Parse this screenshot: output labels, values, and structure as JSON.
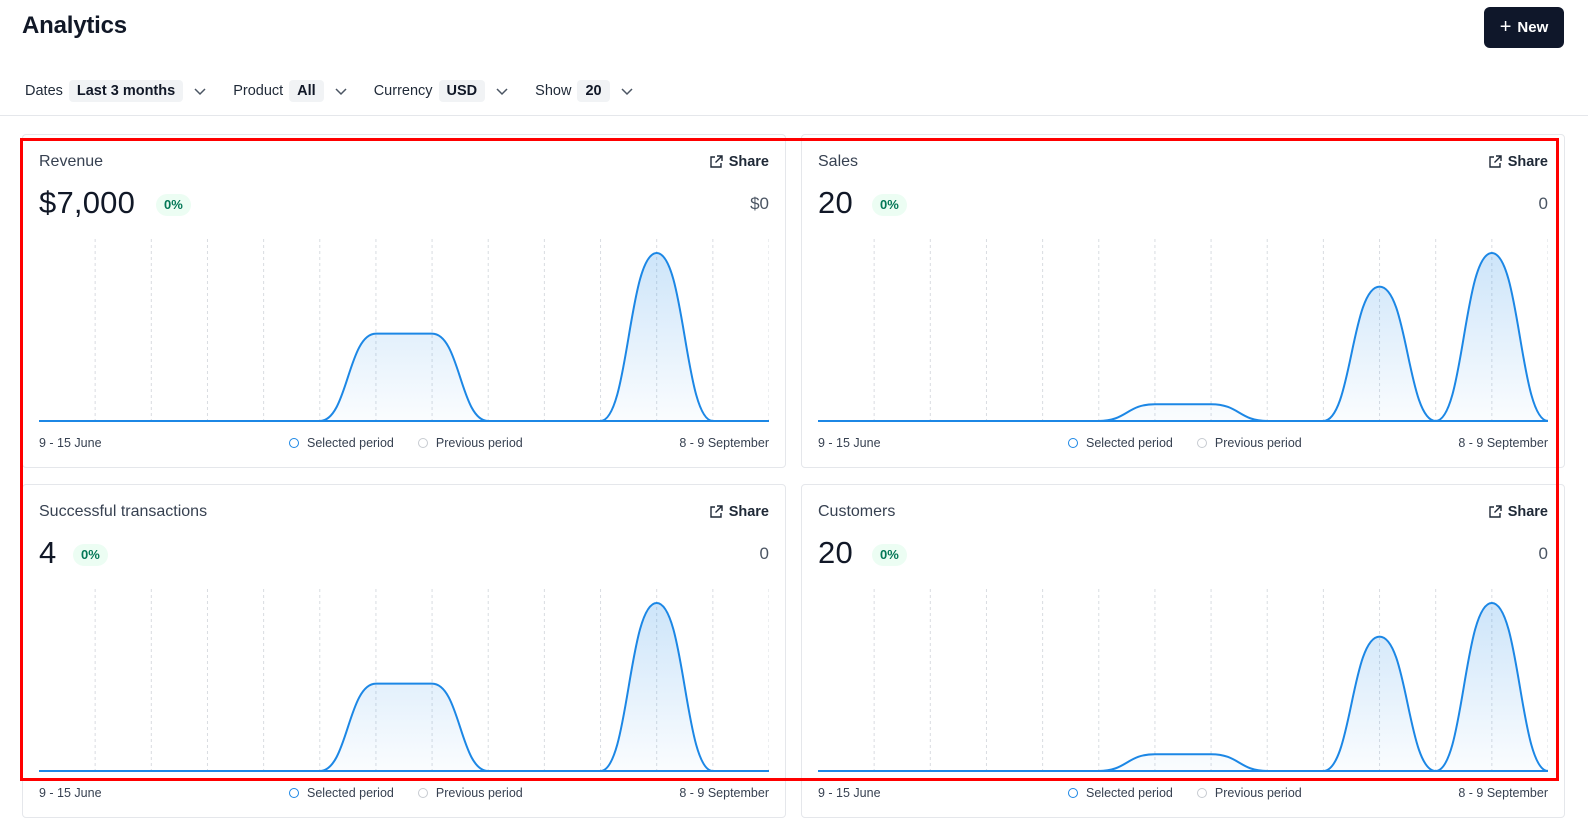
{
  "page": {
    "title": "Analytics",
    "new_button_label": "New"
  },
  "filters": [
    {
      "label": "Dates",
      "value": "Last 3 months"
    },
    {
      "label": "Product",
      "value": "All"
    },
    {
      "label": "Currency",
      "value": "USD"
    },
    {
      "label": "Show",
      "value": "20"
    }
  ],
  "legend": {
    "selected": "Selected period",
    "previous": "Previous period"
  },
  "share_label": "Share",
  "colors": {
    "line": "#1c87e5",
    "badge_bg": "#ecfdf3",
    "badge_text": "#047857",
    "highlight": "#ff0000"
  },
  "cards": [
    {
      "title": "Revenue",
      "value": "$7,000",
      "change": "0%",
      "previous": "$0",
      "start_label": "9 - 15 June",
      "end_label": "8 - 9 September"
    },
    {
      "title": "Sales",
      "value": "20",
      "change": "0%",
      "previous": "0",
      "start_label": "9 - 15 June",
      "end_label": "8 - 9 September"
    },
    {
      "title": "Successful transactions",
      "value": "4",
      "change": "0%",
      "previous": "0",
      "start_label": "9 - 15 June",
      "end_label": "8 - 9 September"
    },
    {
      "title": "Customers",
      "value": "20",
      "change": "0%",
      "previous": "0",
      "start_label": "9 - 15 June",
      "end_label": "8 - 9 September"
    }
  ],
  "chart_data": [
    {
      "type": "area",
      "title": "Revenue",
      "series": [
        {
          "name": "Selected period",
          "values": [
            0,
            0,
            0,
            0,
            0,
            0,
            0.52,
            0.52,
            0,
            0,
            0,
            1,
            0,
            0
          ]
        }
      ]
    },
    {
      "type": "area",
      "title": "Sales",
      "series": [
        {
          "name": "Selected period",
          "values": [
            0,
            0,
            0,
            0,
            0,
            0,
            0.1,
            0.1,
            0,
            0,
            0.8,
            0,
            1,
            0
          ]
        }
      ]
    },
    {
      "type": "area",
      "title": "Successful transactions",
      "series": [
        {
          "name": "Selected period",
          "values": [
            0,
            0,
            0,
            0,
            0,
            0,
            0.52,
            0.52,
            0,
            0,
            0,
            1,
            0,
            0
          ]
        }
      ]
    },
    {
      "type": "area",
      "title": "Customers",
      "series": [
        {
          "name": "Selected period",
          "values": [
            0,
            0,
            0,
            0,
            0,
            0,
            0.1,
            0.1,
            0,
            0,
            0.8,
            0,
            1,
            0
          ]
        }
      ]
    }
  ]
}
